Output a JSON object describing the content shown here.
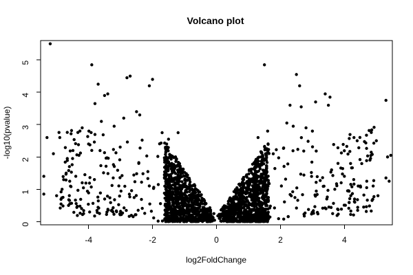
{
  "chart_data": {
    "type": "scatter",
    "title": "Volcano plot",
    "xlabel": "log2FoldChange",
    "ylabel": "-log10(pvalue)",
    "xlim": [
      -5.5,
      5.5
    ],
    "ylim": [
      -0.1,
      5.6
    ],
    "xticks": [
      -4,
      -2,
      0,
      2,
      4
    ],
    "yticks": [
      0,
      1,
      2,
      3,
      4,
      5
    ],
    "grid": false,
    "legend": "none",
    "point_color": "#000000",
    "series": [
      {
        "points": [
          [
            -5.2,
            5.5
          ],
          [
            -3.9,
            4.85
          ],
          [
            -3.7,
            4.25
          ],
          [
            -3.5,
            3.9
          ],
          [
            -3.4,
            3.95
          ],
          [
            -2.8,
            4.45
          ],
          [
            -2.7,
            4.5
          ],
          [
            -2.1,
            4.2
          ],
          [
            -2.0,
            4.4
          ],
          [
            -3.8,
            3.65
          ],
          [
            1.5,
            4.85
          ],
          [
            2.5,
            4.55
          ],
          [
            2.6,
            4.2
          ],
          [
            3.4,
            3.95
          ],
          [
            3.55,
            3.85
          ],
          [
            5.3,
            3.75
          ],
          [
            2.3,
            3.6
          ],
          [
            2.65,
            3.55
          ],
          [
            3.1,
            3.7
          ],
          [
            3.5,
            3.6
          ],
          [
            -5.3,
            2.6
          ],
          [
            -5.1,
            2.1
          ],
          [
            -4.9,
            2.6
          ],
          [
            -5.4,
            1.4
          ],
          [
            -5.0,
            0.8
          ],
          [
            -4.8,
            0.75
          ],
          [
            -5.4,
            0.85
          ],
          [
            4.3,
            2.6
          ],
          [
            4.4,
            2.5
          ],
          [
            4.8,
            1.9
          ],
          [
            5.0,
            2.5
          ],
          [
            5.35,
            2.0
          ],
          [
            5.45,
            2.05
          ],
          [
            5.4,
            1.25
          ],
          [
            5.3,
            1.35
          ],
          [
            5.05,
            0.8
          ],
          [
            4.1,
            0.95
          ],
          [
            -2.5,
            3.4
          ],
          [
            -2.4,
            3.3
          ],
          [
            -2.9,
            3.2
          ],
          [
            -3.2,
            2.95
          ],
          [
            -3.6,
            3.1
          ],
          [
            -1.7,
            2.75
          ],
          [
            -1.5,
            2.55
          ],
          [
            -1.2,
            2.75
          ],
          [
            1.3,
            2.6
          ],
          [
            1.6,
            2.8
          ],
          [
            2.2,
            3.05
          ],
          [
            2.4,
            2.95
          ],
          [
            2.8,
            2.9
          ],
          [
            3.0,
            2.8
          ],
          [
            -4.2,
            2.9
          ],
          [
            -4.0,
            2.4
          ],
          [
            -3.9,
            2.2
          ],
          [
            -4.3,
            2.05
          ],
          [
            -4.5,
            1.95
          ],
          [
            -4.6,
            1.7
          ],
          [
            -4.7,
            1.5
          ],
          [
            -4.4,
            1.4
          ],
          [
            -4.2,
            1.2
          ],
          [
            4.0,
            1.4
          ],
          [
            4.2,
            1.15
          ],
          [
            4.5,
            1.1
          ],
          [
            4.7,
            1.25
          ],
          [
            4.9,
            1.1
          ],
          [
            3.8,
            1.8
          ],
          [
            3.6,
            1.6
          ],
          [
            3.9,
            1.2
          ],
          [
            3.7,
            1.0
          ],
          [
            4.2,
            0.8
          ]
        ]
      }
    ]
  }
}
